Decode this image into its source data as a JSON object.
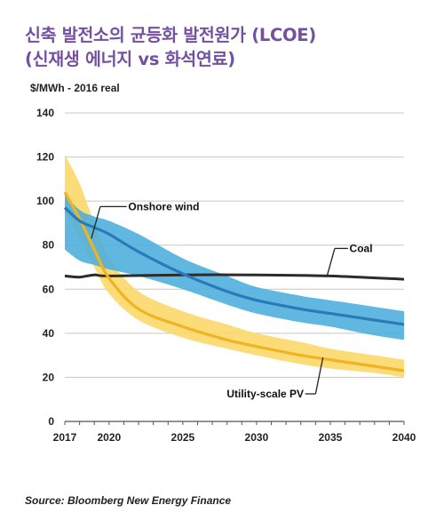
{
  "title_line1": "신축 발전소의 균등화 발전원가 (LCOE)",
  "title_line2": "(신재생 에너지 vs 화석연료)",
  "unit_label": "$/MWh - 2016 real",
  "source": "Source: Bloomberg New Energy Finance",
  "chart_data": {
    "type": "line",
    "title": "신축 발전소의 균등화 발전원가 (LCOE) (신재생 에너지 vs 화석연료)",
    "ylabel": "$/MWh - 2016 real",
    "xlabel": "",
    "xlim": [
      2017,
      2040
    ],
    "ylim": [
      0,
      140
    ],
    "x_ticks": [
      2017,
      2020,
      2025,
      2030,
      2035,
      2040
    ],
    "y_ticks": [
      0,
      20,
      40,
      60,
      80,
      100,
      120,
      140
    ],
    "grid": true,
    "series": [
      {
        "name": "Onshore wind",
        "color": "#2a7ab9",
        "band_color": "#4aaedd",
        "x": [
          2017,
          2018,
          2019,
          2020,
          2022,
          2025,
          2028,
          2030,
          2033,
          2035,
          2038,
          2040
        ],
        "values": [
          97,
          91,
          88,
          85,
          77,
          67,
          59,
          55,
          51,
          49,
          46,
          44
        ],
        "upper": [
          103,
          96,
          93,
          91,
          85,
          74,
          66,
          61,
          57,
          55,
          52,
          50
        ],
        "lower": [
          78,
          73,
          71,
          69,
          66,
          60,
          53,
          49,
          45,
          43,
          39,
          37
        ]
      },
      {
        "name": "Utility-scale PV",
        "color": "#f0b323",
        "band_color": "#fbd86a",
        "x": [
          2017,
          2018,
          2019,
          2020,
          2022,
          2025,
          2028,
          2030,
          2033,
          2035,
          2038,
          2040
        ],
        "values": [
          104,
          92,
          78,
          65,
          51,
          43,
          37,
          34,
          30,
          28,
          25,
          23
        ],
        "upper": [
          121,
          108,
          90,
          74,
          59,
          50,
          44,
          40,
          36,
          33,
          30,
          28
        ],
        "lower": [
          95,
          83,
          70,
          58,
          46,
          38,
          33,
          30,
          26,
          24,
          22,
          20
        ]
      },
      {
        "name": "Coal",
        "color": "#2b2b2b",
        "x": [
          2017,
          2018,
          2019,
          2020,
          2025,
          2030,
          2035,
          2040
        ],
        "values": [
          66,
          65.5,
          66.5,
          66,
          66.5,
          66.5,
          66,
          64.5
        ]
      }
    ]
  }
}
